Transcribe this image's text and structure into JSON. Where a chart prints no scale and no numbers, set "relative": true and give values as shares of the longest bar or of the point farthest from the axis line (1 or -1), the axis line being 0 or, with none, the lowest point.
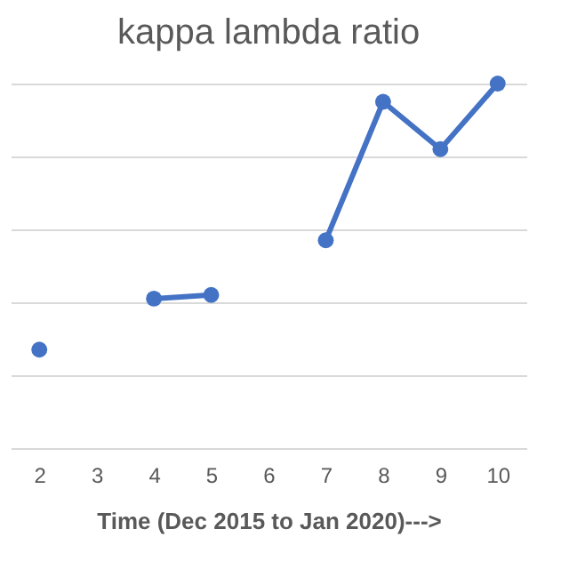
{
  "chart_data": {
    "type": "line",
    "title": "kappa lambda ratio",
    "xlabel": "Time (Dec 2015 to Jan 2020)--->",
    "categories": [
      "2",
      "3",
      "4",
      "5",
      "6",
      "7",
      "8",
      "9",
      "10"
    ],
    "series": [
      {
        "color": "#4472c4",
        "values": [
          0.27,
          null,
          0.41,
          0.42,
          null,
          0.57,
          0.95,
          0.82,
          1
        ]
      }
    ],
    "relative": true,
    "grid": "y",
    "marker": "circle",
    "line_style": "solid"
  }
}
